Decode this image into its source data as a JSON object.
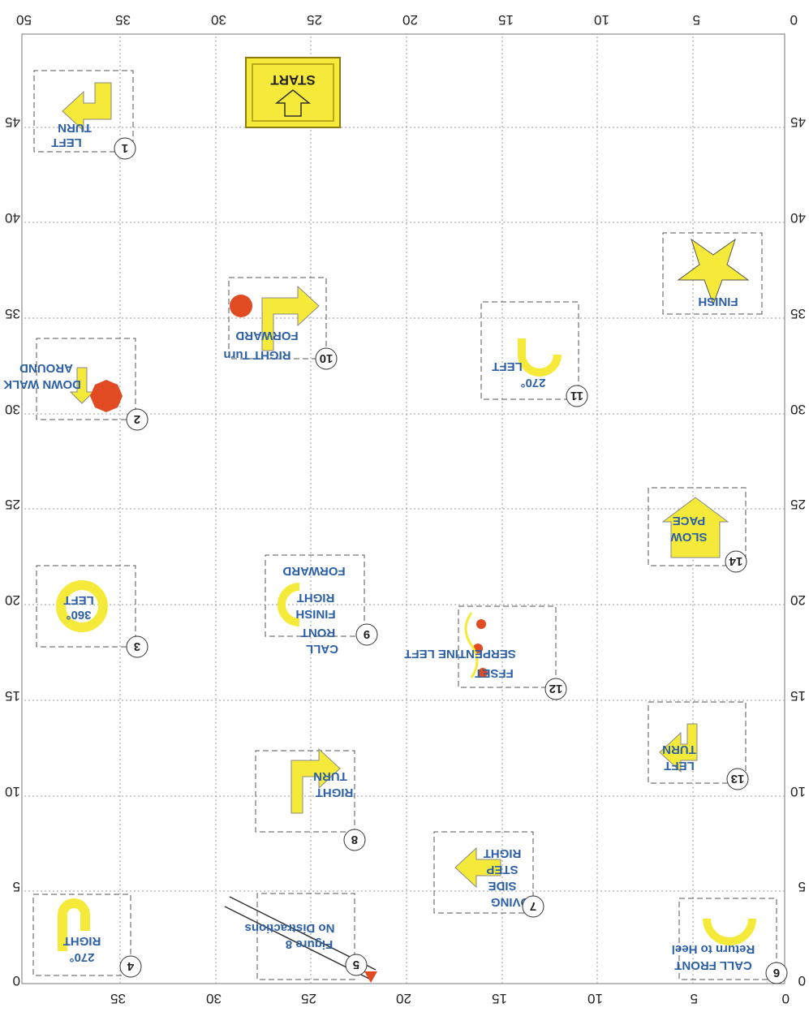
{
  "axis": {
    "top": [
      "0",
      "5",
      "10",
      "15",
      "20",
      "25",
      "30",
      "35",
      "50"
    ],
    "bottom": [
      "0",
      "5",
      "10",
      "15",
      "20",
      "25",
      "30",
      "35"
    ],
    "left": [
      "45",
      "40",
      "35",
      "30",
      "25",
      "20",
      "15",
      "10",
      "5",
      "0"
    ],
    "right": [
      "45",
      "40",
      "35",
      "30",
      "25",
      "20",
      "15",
      "10",
      "5",
      "0"
    ]
  },
  "stations": {
    "start": {
      "label": "START"
    },
    "finish": {
      "label": "FINISH"
    },
    "s1": {
      "num": "1",
      "line1": "LEFT",
      "line2": "TURN"
    },
    "s2": {
      "num": "2",
      "line1": "DOWN WALK",
      "line2": "AROUND"
    },
    "s3": {
      "num": "3",
      "line1": "360°",
      "line2": "LEFT"
    },
    "s4": {
      "num": "4",
      "line1": "270°",
      "line2": "RIGHT"
    },
    "s5": {
      "num": "5",
      "line1": "Figure 8",
      "line2": "No Distractions"
    },
    "s6": {
      "num": "6",
      "line1": "CALL FRONT",
      "line2": "Return to Heel"
    },
    "s7": {
      "num": "7",
      "line1": "OVING",
      "line2": "SIDE",
      "line3": "STEP",
      "line4": "RIGHT"
    },
    "s8": {
      "num": "8",
      "line1": "RIGHT",
      "line2": "TURN"
    },
    "s9": {
      "num": "9",
      "line1": "CALL",
      "line2": "RONT",
      "line3": "FINISH",
      "line4": "RIGHT",
      "line5": "FORWARD"
    },
    "s10": {
      "num": "10",
      "line1": "RIGHT Turn",
      "line2": "FORWARD"
    },
    "s11": {
      "num": "11",
      "line1": "270°",
      "line2": "LEFT"
    },
    "s12": {
      "num": "12",
      "line1": "FFSET",
      "line2": "SERPENTINE LEFT"
    },
    "s13": {
      "num": "13",
      "line1": "LEFT",
      "line2": "TURN"
    },
    "s14": {
      "num": "14",
      "line1": "SLOW",
      "line2": "PACE"
    }
  },
  "colors": {
    "sign_yellow": "#f5ea3a",
    "label_blue": "#2b5fa6",
    "cone_red": "#e24a22",
    "grid": "#9a9a9a"
  }
}
